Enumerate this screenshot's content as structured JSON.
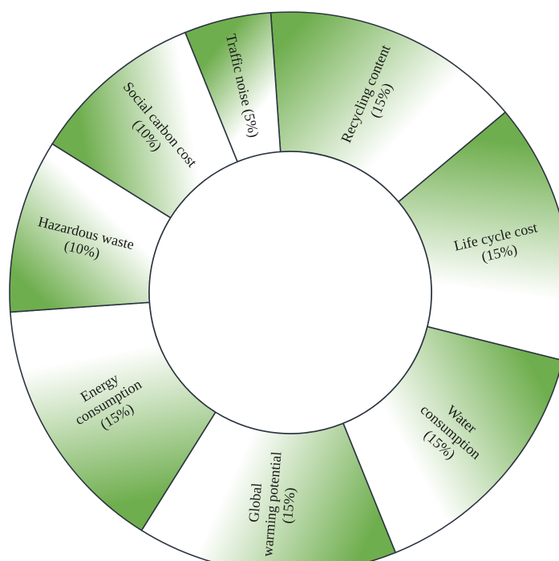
{
  "chart_data": {
    "type": "pie",
    "donut": true,
    "categories": [
      "Recycling content",
      "Life cycle cost",
      "Water consumption",
      "Global warming potential",
      "Energy consumption",
      "Hazardous waste",
      "Social carbon cost",
      "Traffic noise"
    ],
    "values": [
      15,
      15,
      15,
      15,
      15,
      10,
      10,
      5
    ],
    "labels": [
      [
        "Recycling content",
        "(15%)"
      ],
      [
        "Life cycle cost",
        "(15%)"
      ],
      [
        "Water",
        "consumption",
        "(15%)"
      ],
      [
        "Global",
        "warming potential",
        "(15%)"
      ],
      [
        "Energy",
        "consumption",
        "(15%)"
      ],
      [
        "Hazardous waste",
        "(10%)"
      ],
      [
        "Social carbon cost",
        "(10%)"
      ],
      [
        "Traffic noise (5%)"
      ]
    ],
    "colors": {
      "fill_dark": "#6fae4e",
      "fill_light": "#ffffff",
      "border": "#2c3440"
    }
  }
}
